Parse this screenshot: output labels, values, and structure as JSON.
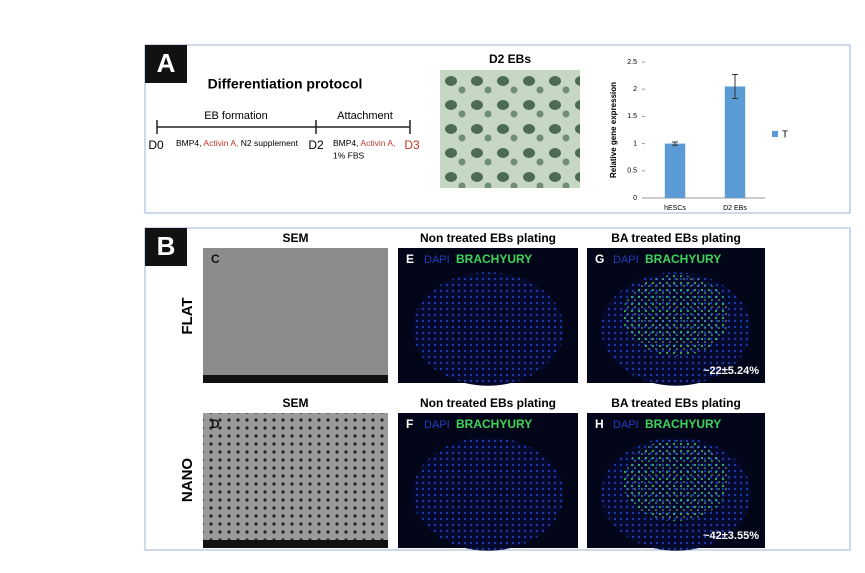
{
  "panel_a": {
    "label": "A",
    "protocol_title": "Differentiation protocol",
    "phases": [
      "EB formation",
      "Attachment"
    ],
    "days": [
      "D0",
      "D2",
      "D3"
    ],
    "stage1": [
      "BMP4,",
      "Activin A,",
      "N2 supplement"
    ],
    "stage2": [
      "BMP4,",
      "Activin A,",
      "1% FBS"
    ],
    "image_title": "D2 EBs"
  },
  "chart_data": {
    "type": "bar",
    "ylabel": "Relative gene expression",
    "categories": [
      "hESCs",
      "D2 EBs"
    ],
    "series": [
      {
        "name": "T",
        "color": "#5b9bd5",
        "values": [
          1.0,
          2.05
        ],
        "errors": [
          0.03,
          0.22
        ]
      }
    ],
    "ylim": [
      0,
      2.5
    ],
    "yticks": [
      0,
      0.5,
      1,
      1.5,
      2,
      2.5
    ]
  },
  "panel_b": {
    "label": "B",
    "rows": [
      "FLAT",
      "NANO"
    ],
    "panels": [
      {
        "letter": "C",
        "title": "SEM"
      },
      {
        "letter": "E",
        "title": "Non treated EBs plating",
        "stain": [
          "DAPI",
          "BRACHYURY"
        ]
      },
      {
        "letter": "G",
        "title": "BA treated EBs plating",
        "stain": [
          "DAPI",
          "BRACHYURY"
        ],
        "percent": "~22±5.24%"
      },
      {
        "letter": "D",
        "title": "SEM"
      },
      {
        "letter": "F",
        "title": "Non treated EBs plating",
        "stain": [
          "DAPI",
          "BRACHYURY"
        ]
      },
      {
        "letter": "H",
        "title": "BA treated EBs plating",
        "stain": [
          "DAPI",
          "BRACHYURY"
        ],
        "percent": "~42±3.55%"
      }
    ]
  }
}
